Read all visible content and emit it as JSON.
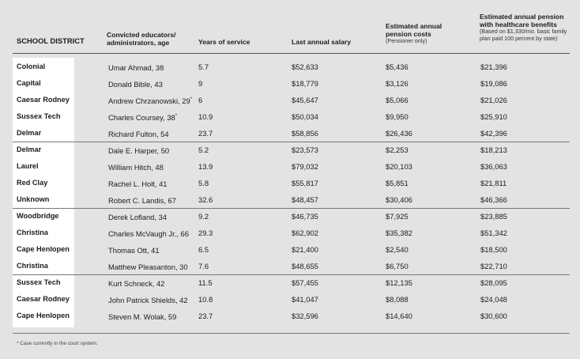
{
  "headers": {
    "district": "SCHOOL DISTRICT",
    "educator_line1": "Convicted educators/",
    "educator_line2": "administrators, age",
    "years": "Years of service",
    "salary": "Last annual salary",
    "pension_line1": "Estimated annual",
    "pension_line2": "pension costs",
    "pension_sub": "(Pensioner only)",
    "health_line1": "Estimated annual pension",
    "health_line2": "with healthcare benefits",
    "health_sub1": "(Based on $1,330/mo. basic family",
    "health_sub2": "plan paid 100 percent by state)"
  },
  "rows": [
    {
      "district": "Colonial",
      "name": "Umar Ahmad, 38",
      "mark": "",
      "years": "5.7",
      "salary": "$52,633",
      "pension": "$5,436",
      "health": "$21,396"
    },
    {
      "district": "Capital",
      "name": "Donald Bible, 43",
      "mark": "",
      "years": "9",
      "salary": "$18,779",
      "pension": "$3,126",
      "health": "$19,086"
    },
    {
      "district": "Caesar Rodney",
      "name": "Andrew Chrzanowski, 29",
      "mark": "*",
      "years": "6",
      "salary": "$45,647",
      "pension": "$5,066",
      "health": "$21,026"
    },
    {
      "district": "Sussex Tech",
      "name": "Charles Coursey, 38",
      "mark": "*",
      "years": "10.9",
      "salary": "$50,034",
      "pension": "$9,950",
      "health": "$25,910"
    },
    {
      "district": "Delmar",
      "name": "Richard Fulton, 54",
      "mark": "",
      "years": "23.7",
      "salary": "$58,856",
      "pension": "$26,436",
      "health": "$42,396"
    },
    {
      "district": "Delmar",
      "name": "Dale E. Harper, 50",
      "mark": "",
      "years": "5.2",
      "salary": "$23,573",
      "pension": "$2,253",
      "health": "$18,213"
    },
    {
      "district": "Laurel",
      "name": "William Hitch, 48",
      "mark": "",
      "years": "13.9",
      "salary": "$79,032",
      "pension": "$20,103",
      "health": "$36,063"
    },
    {
      "district": "Red Clay",
      "name": "Rachel L. Holt, 41",
      "mark": "",
      "years": "5.8",
      "salary": "$55,817",
      "pension": "$5,851",
      "health": "$21,811"
    },
    {
      "district": "Unknown",
      "name": "Robert C. Landis, 67",
      "mark": "",
      "years": "32.6",
      "salary": "$48,457",
      "pension": "$30,406",
      "health": "$46,366"
    },
    {
      "district": "Woodbridge",
      "name": "Derek Lofland, 34",
      "mark": "",
      "years": "9.2",
      "salary": "$46,735",
      "pension": "$7,925",
      "health": "$23,885"
    },
    {
      "district": "Christina",
      "name": "Charles McVaugh Jr., 66",
      "mark": "",
      "years": "29.3",
      "salary": "$62,902",
      "pension": "$35,382",
      "health": "$51,342"
    },
    {
      "district": "Cape Henlopen",
      "name": "Thomas Ott, 41",
      "mark": "",
      "years": "6.5",
      "salary": "$21,400",
      "pension": "$2,540",
      "health": "$18,500"
    },
    {
      "district": "Christina",
      "name": "Matthew Pleasanton, 30",
      "mark": "",
      "years": "7.6",
      "salary": "$48,655",
      "pension": "$6,750",
      "health": "$22,710"
    },
    {
      "district": "Sussex Tech",
      "name": "Kurt Schneck, 42",
      "mark": "",
      "years": "11.5",
      "salary": "$57,455",
      "pension": "$12,135",
      "health": "$28,095"
    },
    {
      "district": "Caesar Rodney",
      "name": "John Patrick Shields, 42",
      "mark": "",
      "years": "10.8",
      "salary": "$41,047",
      "pension": "$8,088",
      "health": "$24,048"
    },
    {
      "district": "Cape Henlopen",
      "name": "Steven M. Wolak, 59",
      "mark": "",
      "years": "23.7",
      "salary": "$32,596",
      "pension": "$14,640",
      "health": "$30,600"
    }
  ],
  "footnote": "* Case currently in the court system."
}
